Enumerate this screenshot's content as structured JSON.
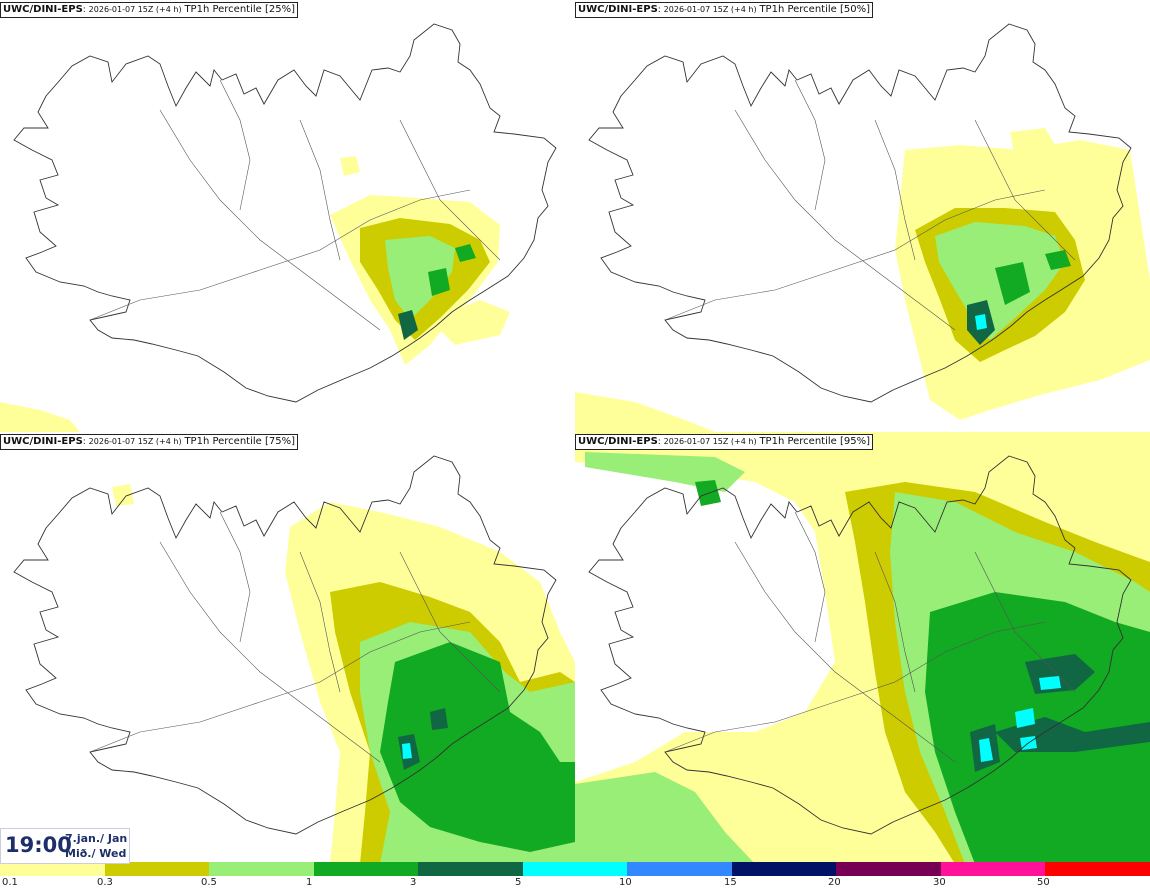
{
  "panels": [
    {
      "model": "UWC/DINI-EPS",
      "run": "2026-01-07 15Z (+4 h)",
      "label": "TP1h Percentile [25%]"
    },
    {
      "model": "UWC/DINI-EPS",
      "run": "2026-01-07 15Z (+4 h)",
      "label": "TP1h Percentile [50%]"
    },
    {
      "model": "UWC/DINI-EPS",
      "run": "2026-01-07 15Z (+4 h)",
      "label": "TP1h Percentile [75%]"
    },
    {
      "model": "UWC/DINI-EPS",
      "run": "2026-01-07 15Z (+4 h)",
      "label": "TP1h Percentile [95%]"
    }
  ],
  "valid_time": {
    "time": "19:00",
    "date_line": "7.jan./ Jan",
    "day_line": "Mið./ Wed"
  },
  "legend": {
    "labels": [
      "0.1",
      "0.3",
      "0.5",
      "1",
      "3",
      "5",
      "10",
      "15",
      "20",
      "30",
      "50"
    ],
    "colors": [
      "#ffff99",
      "#cccc00",
      "#99ee77",
      "#11aa22",
      "#116644",
      "#00ffff",
      "#3388ff",
      "#001166",
      "#770055",
      "#ff1199",
      "#ff0000"
    ]
  }
}
